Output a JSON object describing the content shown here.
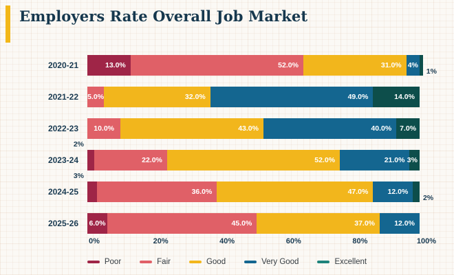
{
  "title": "Employers Rate Overall Job Market",
  "colors": {
    "background": "#FBF9F5",
    "grid": "#D8BFA8",
    "accent_bar": "#F2B718",
    "title_text": "#16384E",
    "axis_text": "#1A3B52",
    "outside_label_text": "#1A3B52",
    "segment_label_text": "#FFFFFF",
    "legend_text": "#353C42"
  },
  "chart_data": {
    "type": "bar",
    "orientation": "horizontal-stacked",
    "title": "Employers Rate Overall Job Market",
    "xlabel": "",
    "ylabel": "",
    "xlim": [
      0,
      100
    ],
    "x_ticks": [
      "0%",
      "20%",
      "40%",
      "60%",
      "80%",
      "100%"
    ],
    "grid": false,
    "legend_position": "bottom",
    "categories": [
      "2020-21",
      "2021-22",
      "2022-23",
      "2023-24",
      "2024-25",
      "2025-26"
    ],
    "series": [
      {
        "name": "Poor",
        "color": "#9F2547",
        "values": [
          13,
          0,
          0,
          2,
          3,
          6
        ]
      },
      {
        "name": "Fair",
        "color": "#E06067",
        "values": [
          52,
          5,
          10,
          22,
          36,
          45
        ]
      },
      {
        "name": "Good",
        "color": "#F2B61C",
        "values": [
          31,
          32,
          43,
          52,
          47,
          37
        ]
      },
      {
        "name": "Very Good",
        "color": "#146690",
        "values": [
          4,
          49,
          40,
          21,
          12,
          12
        ]
      },
      {
        "name": "Excellent",
        "color": "#0D4E4B",
        "legend_color": "#1E837B",
        "values": [
          1,
          14,
          7,
          3,
          2,
          0
        ]
      }
    ],
    "rows": [
      {
        "category": "2020-21",
        "segments": [
          {
            "series": "Poor",
            "value": 13,
            "label": "13.0%",
            "label_pos": "inside"
          },
          {
            "series": "Fair",
            "value": 52,
            "label": "52.0%",
            "label_pos": "inside"
          },
          {
            "series": "Good",
            "value": 31,
            "label": "31.0%",
            "label_pos": "inside"
          },
          {
            "series": "Very Good",
            "value": 4,
            "label": "4%",
            "label_pos": "center"
          },
          {
            "series": "Excellent",
            "value": 1,
            "label": "1%",
            "label_pos": "outside"
          }
        ]
      },
      {
        "category": "2021-22",
        "segments": [
          {
            "series": "Fair",
            "value": 5,
            "label": "5.0%",
            "label_pos": "center"
          },
          {
            "series": "Good",
            "value": 32,
            "label": "32.0%",
            "label_pos": "inside"
          },
          {
            "series": "Very Good",
            "value": 49,
            "label": "49.0%",
            "label_pos": "inside"
          },
          {
            "series": "Excellent",
            "value": 14,
            "label": "14.0%",
            "label_pos": "inside"
          }
        ]
      },
      {
        "category": "2022-23",
        "segments": [
          {
            "series": "Fair",
            "value": 10,
            "label": "10.0%",
            "label_pos": "center"
          },
          {
            "series": "Good",
            "value": 43,
            "label": "43.0%",
            "label_pos": "inside"
          },
          {
            "series": "Very Good",
            "value": 40,
            "label": "40.0%",
            "label_pos": "inside"
          },
          {
            "series": "Excellent",
            "value": 7,
            "label": "7.0%",
            "label_pos": "center"
          }
        ]
      },
      {
        "category": "2023-24",
        "segments": [
          {
            "series": "Poor",
            "value": 2,
            "label": "2%",
            "label_pos": "above"
          },
          {
            "series": "Fair",
            "value": 22,
            "label": "22.0%",
            "label_pos": "inside"
          },
          {
            "series": "Good",
            "value": 52,
            "label": "52.0%",
            "label_pos": "inside"
          },
          {
            "series": "Very Good",
            "value": 21,
            "label": "21.0%",
            "label_pos": "inside"
          },
          {
            "series": "Excellent",
            "value": 3,
            "label": "3%",
            "label_pos": "edge"
          }
        ]
      },
      {
        "category": "2024-25",
        "segments": [
          {
            "series": "Poor",
            "value": 3,
            "label": "3%",
            "label_pos": "above"
          },
          {
            "series": "Fair",
            "value": 36,
            "label": "36.0%",
            "label_pos": "inside"
          },
          {
            "series": "Good",
            "value": 47,
            "label": "47.0%",
            "label_pos": "inside"
          },
          {
            "series": "Very Good",
            "value": 12,
            "label": "12.0%",
            "label_pos": "inside"
          },
          {
            "series": "Excellent",
            "value": 2,
            "label": "2%",
            "label_pos": "outside"
          }
        ]
      },
      {
        "category": "2025-26",
        "segments": [
          {
            "series": "Poor",
            "value": 6,
            "label": "6.0%",
            "label_pos": "center"
          },
          {
            "series": "Fair",
            "value": 45,
            "label": "45.0%",
            "label_pos": "inside"
          },
          {
            "series": "Good",
            "value": 37,
            "label": "37.0%",
            "label_pos": "inside"
          },
          {
            "series": "Very Good",
            "value": 12,
            "label": "12.0%",
            "label_pos": "inside"
          }
        ]
      }
    ]
  },
  "legend": {
    "items": [
      {
        "label": "Poor"
      },
      {
        "label": "Fair"
      },
      {
        "label": "Good"
      },
      {
        "label": "Very Good"
      },
      {
        "label": "Excellent"
      }
    ]
  }
}
